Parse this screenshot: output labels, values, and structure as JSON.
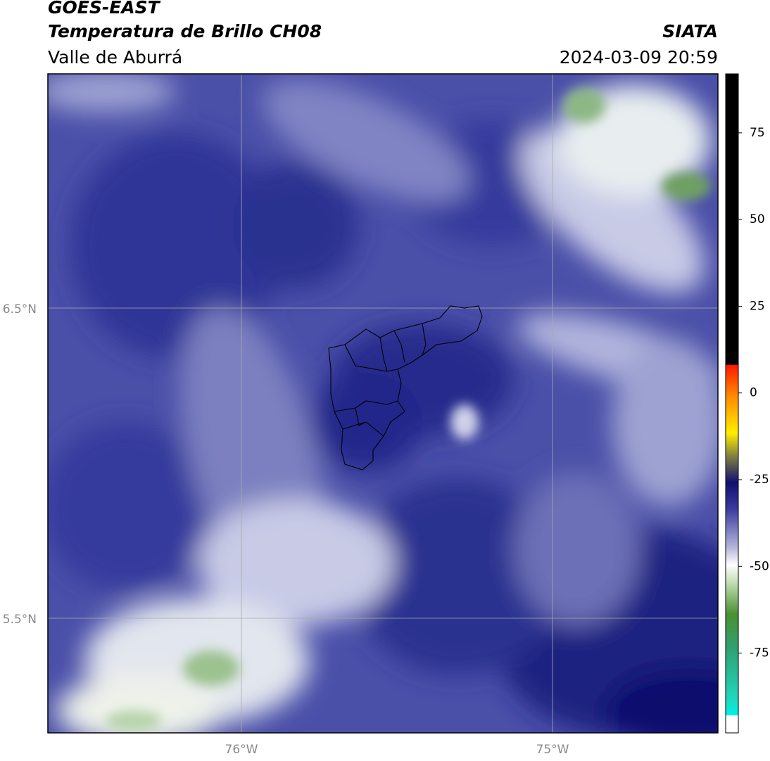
{
  "header": {
    "title": "GOES-EAST",
    "subtitle": "Temperatura de Brillo CH08",
    "region": "Valle de Aburrá",
    "agency": "SIATA",
    "datetime": "2024-03-09 20:59"
  },
  "map": {
    "lat_labels": [
      "6.5°N",
      "5.5°N"
    ],
    "lon_labels": [
      "76°W",
      "75°W"
    ]
  },
  "colorbar": {
    "range": [
      -98,
      92
    ],
    "ticks": [
      75,
      50,
      25,
      0,
      -25,
      -50,
      -75
    ]
  }
}
